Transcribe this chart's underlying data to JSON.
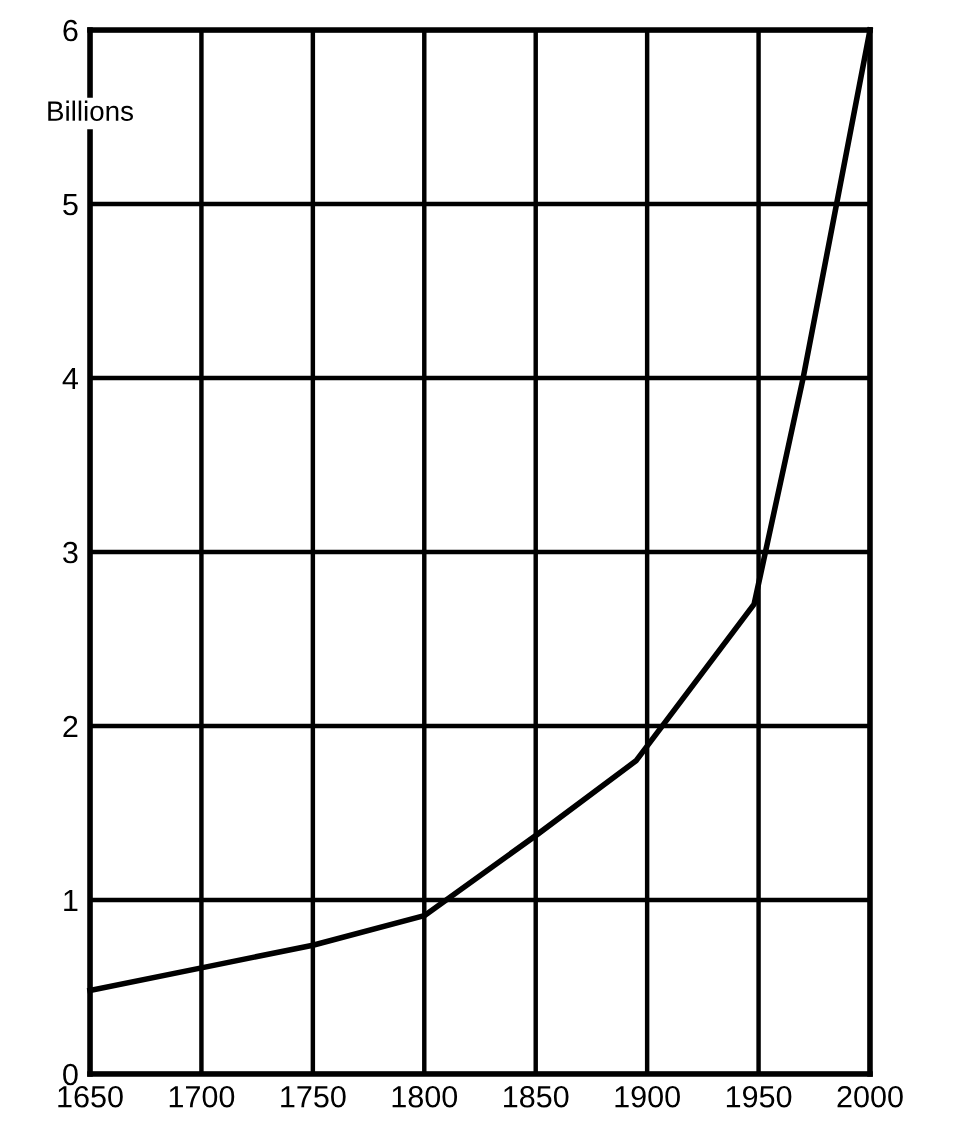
{
  "chart_data": {
    "type": "line",
    "ylabel": "Billions",
    "x": [
      1650,
      1700,
      1750,
      1800,
      1850,
      1895,
      1948,
      1970,
      2000
    ],
    "series": [
      {
        "color": "#000000",
        "values": [
          0.48,
          0.61,
          0.74,
          0.91,
          1.37,
          1.8,
          2.7,
          4.0,
          6.0
        ]
      }
    ],
    "xlim": [
      1650,
      2000
    ],
    "xticks": [
      1650,
      1700,
      1750,
      1800,
      1850,
      1900,
      1950,
      2000
    ],
    "ylim": [
      0,
      6
    ],
    "yticks": [
      0,
      1,
      2,
      3,
      4,
      5,
      6
    ],
    "grid": true,
    "legend": false,
    "marker": "none",
    "line_style": "solid"
  }
}
